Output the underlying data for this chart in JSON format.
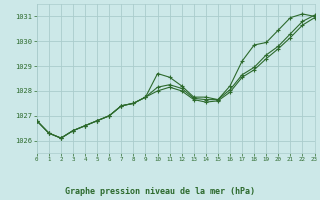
{
  "title": "Graphe pression niveau de la mer (hPa)",
  "bg_color": "#cce8e8",
  "grid_color": "#aacccc",
  "line_color": "#2d6a2d",
  "xlim": [
    0,
    23
  ],
  "ylim": [
    1025.5,
    1031.5
  ],
  "yticks": [
    1026,
    1027,
    1028,
    1029,
    1030,
    1031
  ],
  "xticks": [
    0,
    1,
    2,
    3,
    4,
    5,
    6,
    7,
    8,
    9,
    10,
    11,
    12,
    13,
    14,
    15,
    16,
    17,
    18,
    19,
    20,
    21,
    22,
    23
  ],
  "series1_x": [
    0,
    1,
    2,
    3,
    4,
    5,
    6,
    7,
    8,
    9,
    10,
    11,
    12,
    13,
    14,
    15,
    16,
    17,
    18,
    19,
    20,
    21,
    22,
    23
  ],
  "series1_y": [
    1026.8,
    1026.3,
    1026.1,
    1026.4,
    1026.6,
    1026.8,
    1027.0,
    1027.4,
    1027.5,
    1027.75,
    1028.7,
    1028.55,
    1028.2,
    1027.75,
    1027.75,
    1027.65,
    1028.2,
    1029.2,
    1029.85,
    1029.95,
    1030.45,
    1030.95,
    1031.1,
    1031.0
  ],
  "series2_x": [
    0,
    1,
    2,
    3,
    4,
    5,
    6,
    7,
    8,
    9,
    10,
    11,
    12,
    13,
    14,
    15,
    16,
    17,
    18,
    19,
    20,
    21,
    22,
    23
  ],
  "series2_y": [
    1026.8,
    1026.3,
    1026.1,
    1026.4,
    1026.6,
    1026.8,
    1027.0,
    1027.4,
    1027.5,
    1027.75,
    1028.15,
    1028.25,
    1028.1,
    1027.7,
    1027.65,
    1027.65,
    1028.05,
    1028.65,
    1028.95,
    1029.45,
    1029.8,
    1030.3,
    1030.8,
    1031.05
  ],
  "series3_x": [
    0,
    1,
    2,
    3,
    4,
    5,
    6,
    7,
    8,
    9,
    10,
    11,
    12,
    13,
    14,
    15,
    16,
    17,
    18,
    19,
    20,
    21,
    22,
    23
  ],
  "series3_y": [
    1026.8,
    1026.3,
    1026.1,
    1026.4,
    1026.6,
    1026.8,
    1027.0,
    1027.4,
    1027.5,
    1027.75,
    1028.0,
    1028.15,
    1028.0,
    1027.65,
    1027.55,
    1027.6,
    1027.95,
    1028.55,
    1028.85,
    1029.3,
    1029.7,
    1030.15,
    1030.65,
    1030.95
  ]
}
